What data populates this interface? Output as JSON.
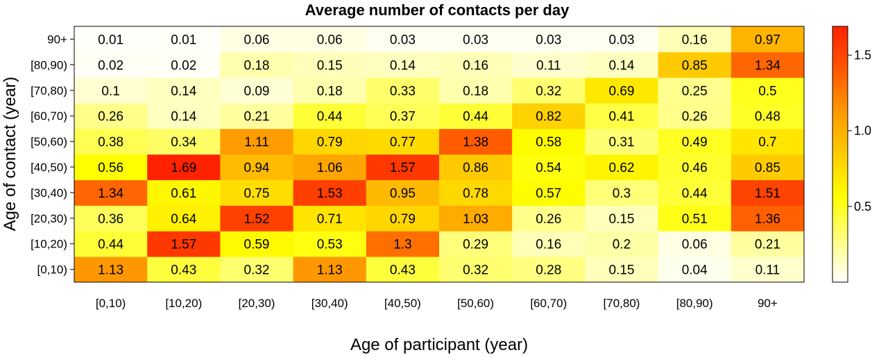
{
  "chart_data": {
    "type": "heatmap",
    "title": "Average number of contacts per day",
    "xlabel": "Age of participant (year)",
    "ylabel": "Age of contact (year)",
    "x_categories": [
      "[0,10)",
      "[10,20)",
      "[20,30)",
      "[30,40)",
      "[40,50)",
      "[50,60)",
      "[60,70)",
      "[70,80)",
      "[80,90)",
      "90+"
    ],
    "y_categories": [
      "[0,10)",
      "[10,20)",
      "[20,30)",
      "[30,40)",
      "[40,50)",
      "[50,60)",
      "[60,70)",
      "[70,80)",
      "[80,90)",
      "90+"
    ],
    "values": [
      [
        1.13,
        0.43,
        0.32,
        1.13,
        0.43,
        0.32,
        0.28,
        0.15,
        0.04,
        0.11
      ],
      [
        0.44,
        1.57,
        0.59,
        0.53,
        1.3,
        0.29,
        0.16,
        0.2,
        0.06,
        0.21
      ],
      [
        0.36,
        0.64,
        1.52,
        0.71,
        0.79,
        1.03,
        0.26,
        0.15,
        0.51,
        1.36
      ],
      [
        1.34,
        0.61,
        0.75,
        1.53,
        0.95,
        0.78,
        0.57,
        0.3,
        0.44,
        1.51
      ],
      [
        0.56,
        1.69,
        0.94,
        1.06,
        1.57,
        0.86,
        0.54,
        0.62,
        0.46,
        0.85
      ],
      [
        0.38,
        0.34,
        1.11,
        0.79,
        0.77,
        1.38,
        0.58,
        0.31,
        0.49,
        0.7
      ],
      [
        0.26,
        0.14,
        0.21,
        0.44,
        0.37,
        0.44,
        0.82,
        0.41,
        0.26,
        0.48
      ],
      [
        0.1,
        0.14,
        0.09,
        0.18,
        0.33,
        0.18,
        0.32,
        0.69,
        0.25,
        0.5
      ],
      [
        0.02,
        0.02,
        0.18,
        0.15,
        0.14,
        0.16,
        0.11,
        0.14,
        0.85,
        1.34
      ],
      [
        0.01,
        0.01,
        0.06,
        0.06,
        0.03,
        0.03,
        0.03,
        0.03,
        0.16,
        0.97
      ]
    ],
    "color_scale": {
      "min": 0,
      "max": 1.69,
      "stops": [
        "#ffffff",
        "#ffff80",
        "#ffff00",
        "#ffcc00",
        "#ff9900",
        "#ff5500",
        "#ff2200"
      ],
      "ticks": [
        0.5,
        1.0,
        1.5
      ],
      "tick_labels": [
        "0.5",
        "1.0",
        "1.5"
      ]
    },
    "grid": false,
    "legend": "right colorbar"
  }
}
